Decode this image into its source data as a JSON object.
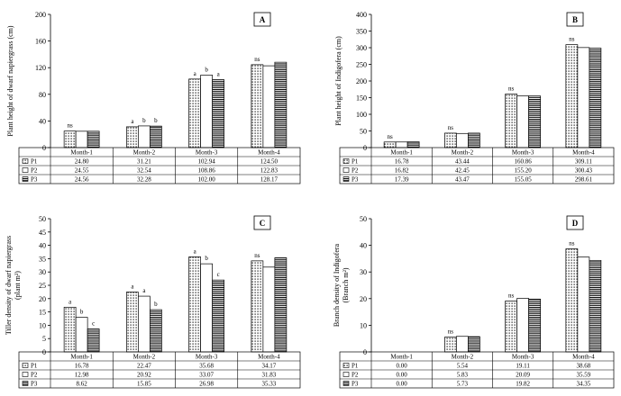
{
  "series_names": [
    "P1",
    "P2",
    "P3"
  ],
  "chart_data": [
    {
      "type": "bar",
      "panel_label": "A",
      "ylabel": [
        "Plant height of dwarf napiergrass  (cm)"
      ],
      "ylim": [
        0,
        200
      ],
      "yticks": [
        "0",
        "40",
        "80",
        "120",
        "160",
        "200"
      ],
      "categories": [
        "Month-1",
        "Month-2",
        "Month-3",
        "Month-4"
      ],
      "series": [
        {
          "name": "P1",
          "values": [
            24.8,
            31.21,
            102.94,
            124.5
          ],
          "display": [
            "24.80",
            "31.21",
            "102.94",
            "124.50"
          ]
        },
        {
          "name": "P2",
          "values": [
            24.55,
            32.54,
            108.86,
            122.83
          ],
          "display": [
            "24.55",
            "32.54",
            "108.86",
            "122.83"
          ]
        },
        {
          "name": "P3",
          "values": [
            24.56,
            32.28,
            102.0,
            128.17
          ],
          "display": [
            "24.56",
            "32.28",
            "102.00",
            "128.17"
          ]
        }
      ],
      "annotations": [
        [
          "ns"
        ],
        [
          "a",
          "b",
          "b"
        ],
        [
          "a",
          "b",
          "a"
        ],
        [
          "ns"
        ]
      ],
      "grid": false,
      "legend": "table below chart"
    },
    {
      "type": "bar",
      "panel_label": "B",
      "ylabel": [
        "Plant  height  of Indigofera  (cm)"
      ],
      "ylim": [
        0,
        400
      ],
      "yticks": [
        "0",
        "50",
        "100",
        "150",
        "200",
        "250",
        "300",
        "350",
        "400"
      ],
      "categories": [
        "Month-1",
        "Month-2",
        "Month-3",
        "Month-4"
      ],
      "series": [
        {
          "name": "P1",
          "values": [
            16.78,
            43.44,
            160.86,
            309.11
          ],
          "display": [
            "16.78",
            "43.44",
            "160.86",
            "309.11"
          ]
        },
        {
          "name": "P2",
          "values": [
            16.82,
            42.45,
            155.2,
            300.43
          ],
          "display": [
            "16.82",
            "42.45",
            "155.20",
            "300.43"
          ]
        },
        {
          "name": "P3",
          "values": [
            17.39,
            43.47,
            155.05,
            298.61
          ],
          "display": [
            "17.39",
            "43.47",
            "155.05",
            "298.61"
          ]
        }
      ],
      "annotations": [
        [
          "ns"
        ],
        [
          "ns"
        ],
        [
          "ns"
        ],
        [
          "ns"
        ]
      ],
      "grid": false,
      "legend": "table below chart"
    },
    {
      "type": "bar",
      "panel_label": "C",
      "ylabel": [
        "Tiller  density  of dwarf napiergrass",
        "(plant m²)"
      ],
      "ylim": [
        0,
        50
      ],
      "yticks": [
        "0",
        "5",
        "10",
        "15",
        "20",
        "25",
        "30",
        "35",
        "40",
        "45",
        "50"
      ],
      "categories": [
        "Month-1",
        "Month-2",
        "Month-3",
        "Month-4"
      ],
      "series": [
        {
          "name": "P1",
          "values": [
            16.78,
            22.47,
            35.68,
            34.17
          ],
          "display": [
            "16.78",
            "22.47",
            "35.68",
            "34.17"
          ]
        },
        {
          "name": "P2",
          "values": [
            12.98,
            20.92,
            33.07,
            31.83
          ],
          "display": [
            "12.98",
            "20.92",
            "33.07",
            "31.83"
          ]
        },
        {
          "name": "P3",
          "values": [
            8.62,
            15.85,
            26.98,
            35.33
          ],
          "display": [
            "8.62",
            "15.85",
            "26.98",
            "35.33"
          ]
        }
      ],
      "annotations": [
        [
          "a",
          "b",
          "c"
        ],
        [
          "a",
          "a",
          "b"
        ],
        [
          "a",
          "b",
          "c"
        ],
        [
          "ns"
        ]
      ],
      "grid": false,
      "legend": "table below chart"
    },
    {
      "type": "bar",
      "panel_label": "D",
      "ylabel": [
        "Branch density of Indigofera",
        "(Branch m²)"
      ],
      "ylim": [
        0,
        50
      ],
      "yticks": [
        "0",
        "10",
        "20",
        "30",
        "40",
        "50"
      ],
      "categories": [
        "Month-1",
        "Month-2",
        "Month-3",
        "Month-4"
      ],
      "series": [
        {
          "name": "P1",
          "values": [
            0.0,
            5.54,
            19.11,
            38.68
          ],
          "display": [
            "0.00",
            "5.54",
            "19.11",
            "38.68"
          ]
        },
        {
          "name": "P2",
          "values": [
            0.0,
            5.83,
            20.09,
            35.59
          ],
          "display": [
            "0.00",
            "5.83",
            "20.09",
            "35.59"
          ]
        },
        {
          "name": "P3",
          "values": [
            0.0,
            5.73,
            19.82,
            34.35
          ],
          "display": [
            "0.00",
            "5.73",
            "19.82",
            "34.35"
          ]
        }
      ],
      "annotations": [
        [],
        [
          "ns"
        ],
        [
          "ns"
        ],
        [
          "ns"
        ]
      ],
      "grid": false,
      "legend": "table below chart"
    }
  ]
}
